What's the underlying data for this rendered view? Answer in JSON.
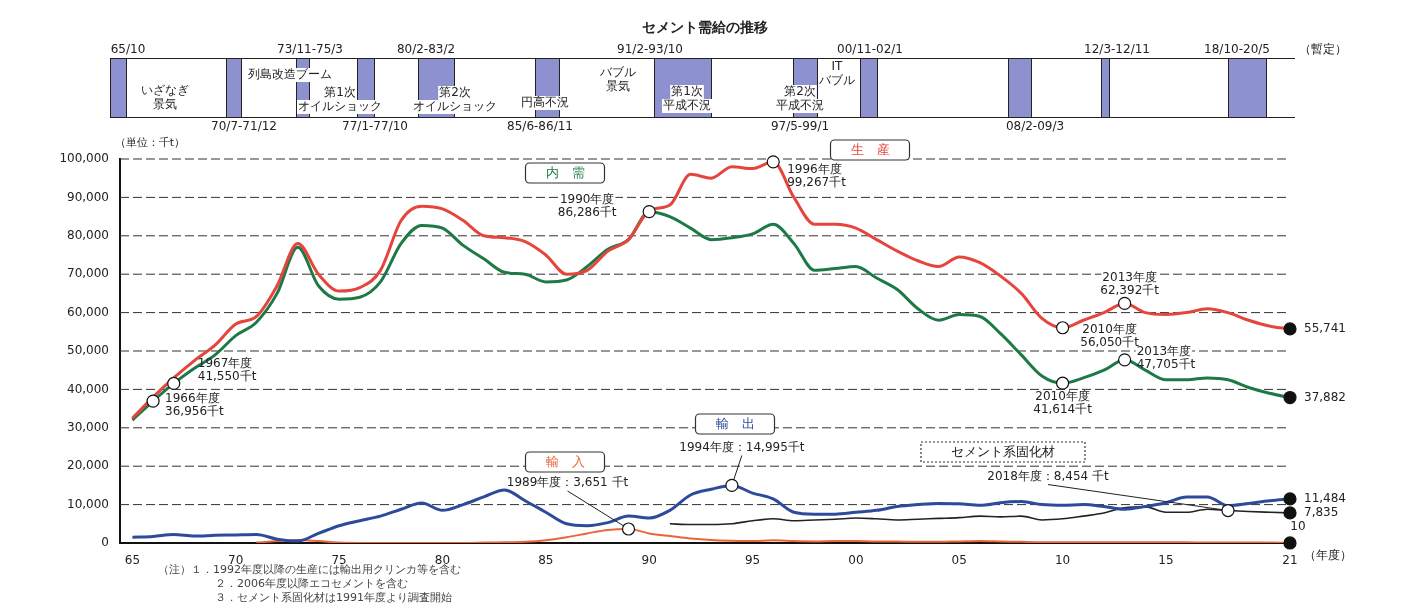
{
  "chart_data": {
    "type": "line",
    "title": "セメント需給の推移",
    "xlabel": "（年度）",
    "ylabel": "（単位：千t）",
    "x": [
      1965,
      1966,
      1967,
      1968,
      1969,
      1970,
      1971,
      1972,
      1973,
      1974,
      1975,
      1976,
      1977,
      1978,
      1979,
      1980,
      1981,
      1982,
      1983,
      1984,
      1985,
      1986,
      1987,
      1988,
      1989,
      1990,
      1991,
      1992,
      1993,
      1994,
      1995,
      1996,
      1997,
      1998,
      1999,
      2000,
      2001,
      2002,
      2003,
      2004,
      2005,
      2006,
      2007,
      2008,
      2009,
      2010,
      2011,
      2012,
      2013,
      2014,
      2015,
      2016,
      2017,
      2018,
      2019,
      2020,
      2021
    ],
    "series": [
      {
        "name": "生　産",
        "color": "#e5453c",
        "values": [
          32500,
          38000,
          43000,
          47500,
          51500,
          57000,
          59000,
          67000,
          78000,
          70000,
          65600,
          66500,
          71000,
          84000,
          87700,
          87000,
          84000,
          80000,
          79500,
          78500,
          75000,
          70000,
          71000,
          76000,
          79000,
          86500,
          88000,
          96000,
          95000,
          98000,
          97500,
          99267,
          90000,
          83000,
          83000,
          82000,
          79000,
          76000,
          73500,
          72000,
          74500,
          73000,
          69500,
          65000,
          58500,
          56050,
          58000,
          60000,
          62392,
          60000,
          59500,
          60000,
          61000,
          60000,
          58000,
          56500,
          55741
        ]
      },
      {
        "name": "内　需",
        "color": "#1d7a46",
        "values": [
          32000,
          36956,
          41550,
          45500,
          49000,
          54000,
          57500,
          65000,
          77000,
          67000,
          63500,
          64000,
          68000,
          78000,
          82700,
          82000,
          77500,
          74000,
          70500,
          70000,
          68000,
          68500,
          72000,
          76500,
          79000,
          86286,
          85000,
          82000,
          79000,
          79500,
          80500,
          83000,
          78000,
          71000,
          71500,
          72000,
          69000,
          66000,
          61000,
          58000,
          59500,
          59000,
          54500,
          49000,
          43500,
          41614,
          43000,
          45000,
          47705,
          45000,
          42500,
          42500,
          43000,
          42500,
          40500,
          39000,
          37882
        ]
      },
      {
        "name": "輸　出",
        "color": "#2e4b9b",
        "values": [
          1500,
          1700,
          2200,
          1800,
          2000,
          2100,
          2200,
          1000,
          500,
          2500,
          4500,
          5800,
          7000,
          8800,
          10400,
          8500,
          10000,
          12000,
          13800,
          11000,
          8000,
          5000,
          4500,
          5300,
          7000,
          6500,
          8500,
          12500,
          14000,
          14995,
          13000,
          11500,
          8000,
          7500,
          7500,
          8000,
          8500,
          9500,
          10000,
          10300,
          10200,
          9800,
          10500,
          10800,
          10000,
          9800,
          10000,
          9500,
          8800,
          9500,
          10500,
          12000,
          12000,
          9700,
          10300,
          11000,
          11484
        ]
      },
      {
        "name": "輸　入",
        "color": "#e8663a",
        "values": [
          null,
          null,
          null,
          null,
          null,
          null,
          100,
          500,
          800,
          500,
          100,
          0,
          0,
          0,
          0,
          0,
          0,
          100,
          200,
          300,
          700,
          1500,
          2500,
          3400,
          3651,
          2500,
          1800,
          1200,
          800,
          600,
          500,
          700,
          500,
          400,
          500,
          500,
          400,
          400,
          300,
          300,
          400,
          500,
          400,
          300,
          200,
          200,
          200,
          200,
          200,
          200,
          200,
          200,
          100,
          100,
          100,
          100,
          10
        ]
      },
      {
        "name": "セメント系固化材",
        "color": "#222222",
        "values": [
          null,
          null,
          null,
          null,
          null,
          null,
          null,
          null,
          null,
          null,
          null,
          null,
          null,
          null,
          null,
          null,
          null,
          null,
          null,
          null,
          null,
          null,
          null,
          null,
          null,
          null,
          5000,
          4800,
          4800,
          5000,
          5800,
          6300,
          5800,
          6000,
          6200,
          6500,
          6300,
          6000,
          6200,
          6400,
          6600,
          7000,
          6800,
          7000,
          6000,
          6300,
          7000,
          7800,
          9200,
          9400,
          8000,
          8000,
          8800,
          8454,
          8200,
          8000,
          7835
        ]
      }
    ],
    "xlim": [
      1964.4,
      2021
    ],
    "xticks": [
      {
        "value": 1965,
        "label": "65"
      },
      {
        "value": 1970,
        "label": "70"
      },
      {
        "value": 1975,
        "label": "75"
      },
      {
        "value": 1980,
        "label": "80"
      },
      {
        "value": 1985,
        "label": "85"
      },
      {
        "value": 1990,
        "label": "90"
      },
      {
        "value": 1995,
        "label": "95"
      },
      {
        "value": 2000,
        "label": "00"
      },
      {
        "value": 2005,
        "label": "05"
      },
      {
        "value": 2010,
        "label": "10"
      },
      {
        "value": 2015,
        "label": "15"
      },
      {
        "value": 2021,
        "label": "21"
      }
    ],
    "ylim": [
      0,
      100000
    ],
    "yticks": [
      0,
      {
        "value": 10000,
        "label": "10,000"
      },
      {
        "value": 20000,
        "label": "20,000"
      },
      {
        "value": 30000,
        "label": "30,000"
      },
      {
        "value": 40000,
        "label": "40,000"
      },
      {
        "value": 50000,
        "label": "50,000"
      },
      {
        "value": 60000,
        "label": "60,000"
      },
      {
        "value": 70000,
        "label": "70,000"
      },
      {
        "value": 80000,
        "label": "80,000"
      },
      {
        "value": 90000,
        "label": "90,000"
      },
      {
        "value": 100000,
        "label": "100,000"
      }
    ],
    "grid": "y",
    "marker": "none",
    "line_style": "solid",
    "annotations": [
      {
        "text": "1966年度\n36,956千t",
        "x": 1966,
        "y": 36956
      },
      {
        "text": "1967年度\n41,550千t",
        "x": 1967,
        "y": 41550
      },
      {
        "text": "1990年度\n86,286千t",
        "x": 1990,
        "y": 86286
      },
      {
        "text": "1996年度\n99,267千t",
        "x": 1996,
        "y": 99267
      },
      {
        "text": "2010年度\n56,050千t",
        "x": 2010,
        "y": 56050
      },
      {
        "text": "2013年度\n62,392千t",
        "x": 2013,
        "y": 62392
      },
      {
        "text": "2010年度\n41,614千t",
        "x": 2010,
        "y": 41614
      },
      {
        "text": "2013年度\n47,705千t",
        "x": 2013,
        "y": 47705
      },
      {
        "text": "1989年度：3,651 千t",
        "x": 1989,
        "y": 3651
      },
      {
        "text": "1994年度：14,995千t",
        "x": 1994,
        "y": 14995
      },
      {
        "text": "2018年度：8,454 千t",
        "x": 2018,
        "y": 8454
      },
      {
        "text": "55,741",
        "x": 2021,
        "y": 55741
      },
      {
        "text": "37,882",
        "x": 2021,
        "y": 37882
      },
      {
        "text": "11,484",
        "x": 2021,
        "y": 11484
      },
      {
        "text": "7,835",
        "x": 2021,
        "y": 7835
      },
      {
        "text": "10",
        "x": 2021,
        "y": 10
      },
      "65/10",
      "70/7-71/12",
      "73/11-75/3",
      "77/1-77/10",
      "80/2-83/2",
      "85/6-86/11",
      "91/2-93/10",
      "97/5-99/1",
      "00/11-02/1",
      "08/2-09/3",
      "12/3-12/11",
      "18/10-20/5",
      "（暫定）",
      "いざなぎ景気",
      "列島改造ブーム",
      "第1次オイルショック",
      "第2次オイルショック",
      "円高不況",
      "バブル景気",
      "第1次平成不況",
      "第2次平成不況",
      "ITバブル",
      "（注）１．1992年度以降の生産には輸出用クリンカ等を含む",
      "２．2006年度以降エコセメントを含む",
      "３．セメント系固化材は1991年度より調査開始"
    ]
  }
}
